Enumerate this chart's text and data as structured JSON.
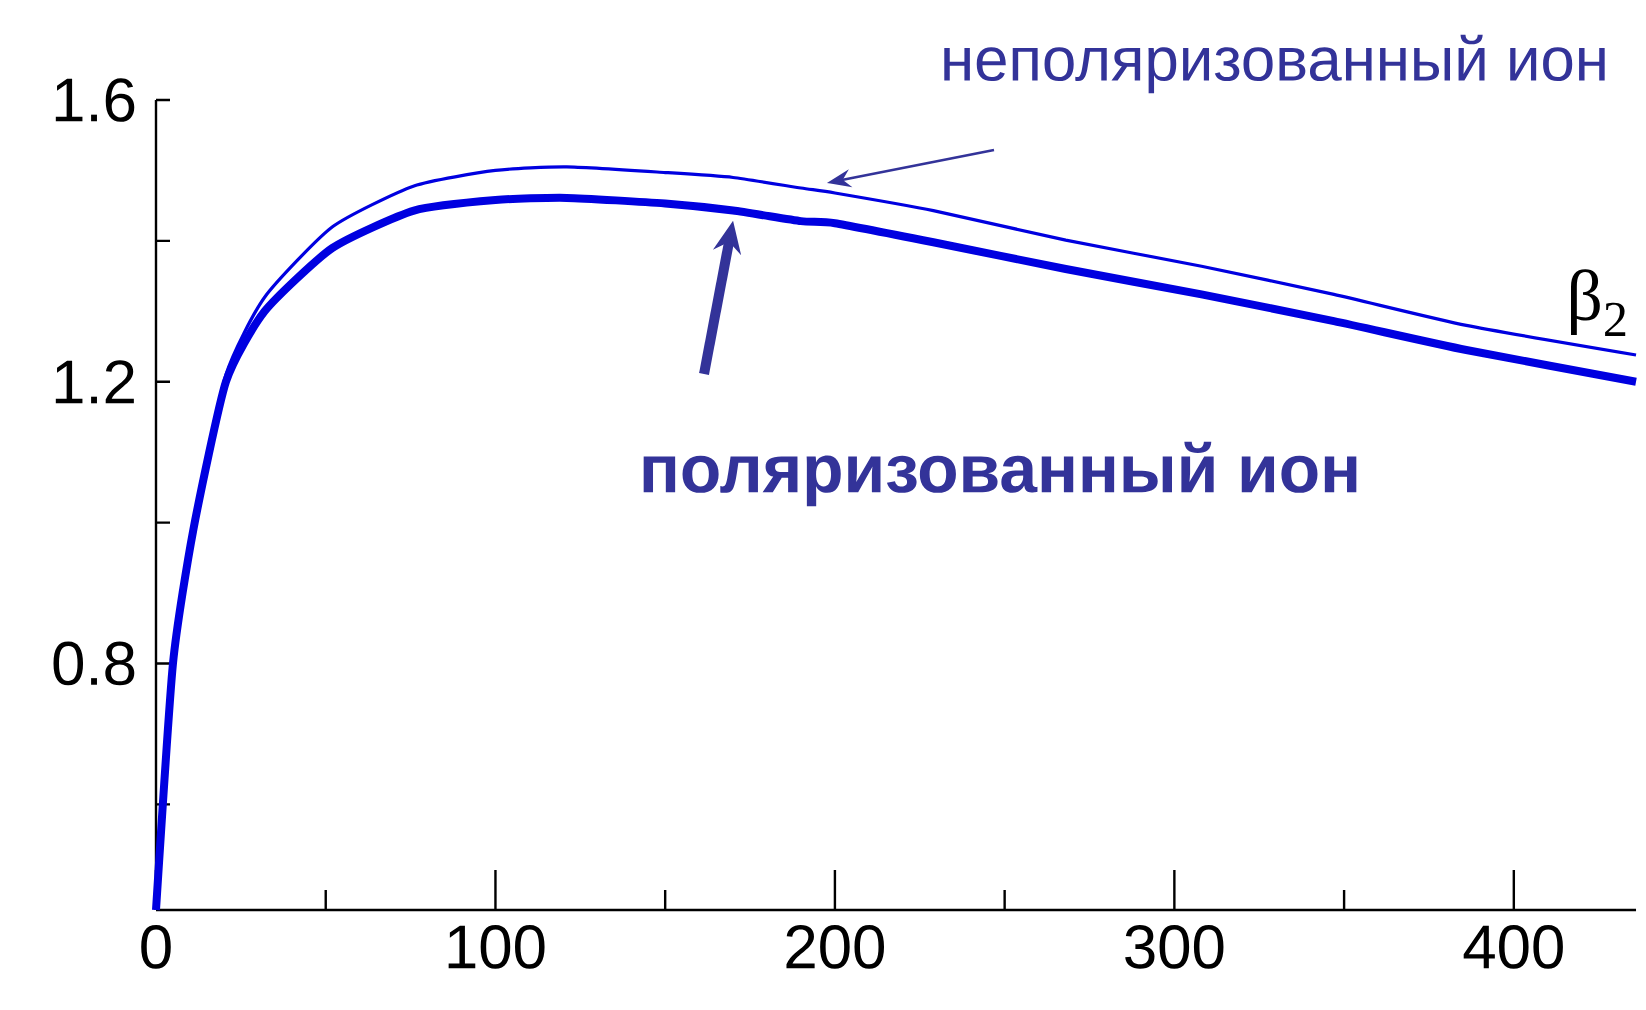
{
  "chart_data": {
    "type": "line",
    "ylabel": "β$_{2}$",
    "x": [
      0,
      5,
      11,
      20.6,
      32,
      52,
      76,
      100,
      121,
      150,
      170,
      190,
      200,
      229,
      268,
      308,
      347,
      386,
      436
    ],
    "series": [
      {
        "name": "неполяризованный ион",
        "color": "#0000e0",
        "values": [
          0.45,
          0.8,
          1.0,
          1.21,
          1.32,
          1.42,
          1.478,
          1.5,
          1.505,
          1.497,
          1.49,
          1.475,
          1.468,
          1.443,
          1.401,
          1.364,
          1.324,
          1.28,
          1.238
        ]
      },
      {
        "name": "поляризованный ион",
        "color": "#0000e0",
        "values": [
          0.45,
          0.8,
          0.99,
          1.2,
          1.3,
          1.39,
          1.443,
          1.458,
          1.461,
          1.453,
          1.443,
          1.428,
          1.425,
          1.398,
          1.36,
          1.324,
          1.286,
          1.245,
          1.2
        ]
      }
    ],
    "xlim": [
      0,
      436
    ],
    "ylim": [
      0.45,
      1.6
    ],
    "xticks": [
      0,
      {
        "value": 50,
        "label": null
      },
      100,
      {
        "value": 150,
        "label": null
      },
      200,
      {
        "value": 250,
        "label": null
      },
      300,
      {
        "value": 350,
        "label": null
      },
      400
    ],
    "yticks": [
      {
        "value": 0.6,
        "label": null
      },
      0.8,
      {
        "value": 1.0,
        "label": null
      },
      1.2,
      {
        "value": 1.4,
        "label": null
      },
      1.6
    ],
    "marker": "none",
    "line_style": "solid"
  }
}
